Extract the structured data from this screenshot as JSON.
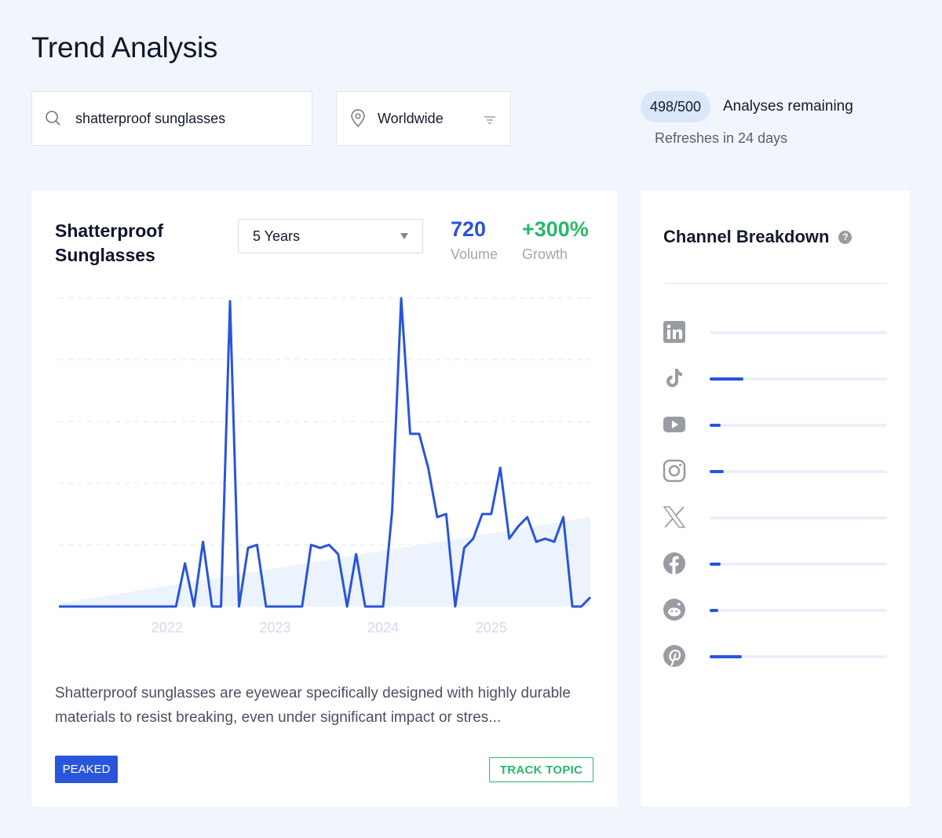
{
  "page": {
    "title": "Trend Analysis"
  },
  "search": {
    "value": "shatterproof sunglasses",
    "icon": "search-icon"
  },
  "location": {
    "value": "Worldwide",
    "icon": "location-pin-icon",
    "filter_icon": "filter-icon"
  },
  "quota": {
    "count": "498/500",
    "label": "Analyses remaining",
    "refresh": "Refreshes in 24 days"
  },
  "topic": {
    "title_line1": "Shatterproof",
    "title_line2": "Sunglasses",
    "range": "5 Years",
    "volume": "720",
    "volume_label": "Volume",
    "growth": "+300%",
    "growth_label": "Growth",
    "description": "Shatterproof sunglasses are eyewear specifically designed with highly durable materials to resist breaking, even under significant impact or stres...",
    "status": "PEAKED",
    "track_label": "TRACK TOPIC"
  },
  "colors": {
    "accent": "#2855d9",
    "growth": "#27b86a",
    "trend_fill": "#e8f0fc"
  },
  "chart_data": {
    "type": "line",
    "x_start": "2021-01",
    "x_interval": "month",
    "x_ticks": [
      "2022",
      "2023",
      "2024",
      "2025"
    ],
    "values": [
      0,
      0,
      0,
      0,
      0,
      0,
      0,
      0,
      0,
      0,
      0,
      0,
      0,
      0,
      14,
      0,
      21,
      0,
      0,
      99,
      0,
      19,
      20,
      0,
      0,
      0,
      0,
      0,
      20,
      19,
      20,
      17,
      0,
      17,
      0,
      0,
      0,
      31,
      100,
      56,
      56,
      45,
      29,
      30,
      0,
      19,
      22,
      30,
      30,
      45,
      22,
      26,
      29,
      21,
      22,
      21,
      29,
      0,
      0,
      3
    ],
    "trend": [
      1,
      29
    ],
    "ylim": [
      0,
      100
    ],
    "grid": true,
    "grid_style": "dashed horizontal",
    "y_axis_labels": false
  },
  "channels": {
    "title": "Channel Breakdown",
    "help_icon": "help-icon",
    "items": [
      {
        "name": "LinkedIn",
        "icon": "linkedin-icon",
        "share": 0
      },
      {
        "name": "TikTok",
        "icon": "tiktok-icon",
        "share": 0.19
      },
      {
        "name": "YouTube",
        "icon": "youtube-icon",
        "share": 0.06
      },
      {
        "name": "Instagram",
        "icon": "instagram-icon",
        "share": 0.08
      },
      {
        "name": "X",
        "icon": "x-icon",
        "share": 0
      },
      {
        "name": "Facebook",
        "icon": "facebook-icon",
        "share": 0.06
      },
      {
        "name": "Reddit",
        "icon": "reddit-icon",
        "share": 0.05
      },
      {
        "name": "Pinterest",
        "icon": "pinterest-icon",
        "share": 0.18
      }
    ]
  }
}
